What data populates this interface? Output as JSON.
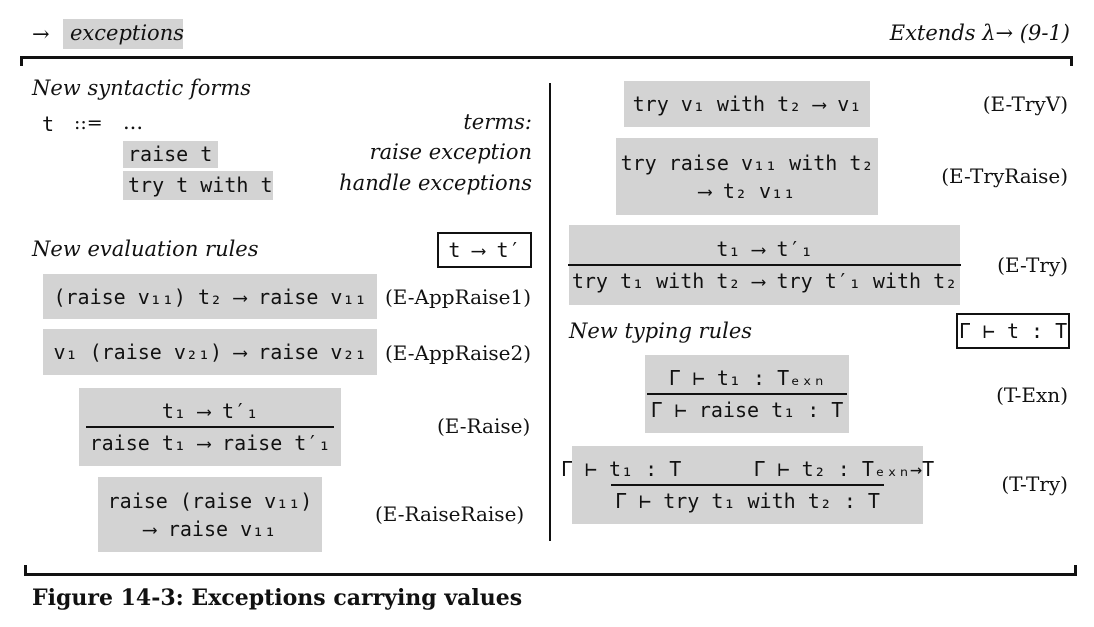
{
  "header": {
    "arrow": "→",
    "feature": "exceptions",
    "extends": "Extends λ→ (9-1)"
  },
  "left": {
    "syntax_heading": "New syntactic forms",
    "syntax_head_term": "t",
    "syntax_head_def": "::=",
    "syntax_head_dots": "...",
    "syntax_head_kind": "terms:",
    "syntax": [
      {
        "form": "raise t",
        "desc": "raise exception"
      },
      {
        "form": "try t with t",
        "desc": "handle exceptions"
      }
    ],
    "eval_heading": "New evaluation rules",
    "eval_judgment": "t ⟶ t′",
    "rules": [
      {
        "name": "(E-AppRaise1)",
        "line": "(raise v₁₁) t₂ ⟶ raise v₁₁"
      },
      {
        "name": "(E-AppRaise2)",
        "line": "v₁ (raise v₂₁) ⟶ raise v₂₁"
      },
      {
        "name": "(E-Raise)",
        "premise": "t₁ ⟶ t′₁",
        "conclusion": "raise t₁ ⟶ raise t′₁"
      },
      {
        "name": "(E-RaiseRaise)",
        "line1": "raise (raise v₁₁)",
        "line2": "⟶ raise v₁₁"
      }
    ]
  },
  "right": {
    "rules": [
      {
        "name": "(E-TryV)",
        "line": "try v₁ with t₂ ⟶ v₁"
      },
      {
        "name": "(E-TryRaise)",
        "line1": "try raise v₁₁ with t₂",
        "line2": "⟶ t₂ v₁₁"
      },
      {
        "name": "(E-Try)",
        "premise": "t₁ ⟶ t′₁",
        "conclusion": "try t₁ with t₂ ⟶ try t′₁ with t₂"
      }
    ],
    "typing_heading": "New typing rules",
    "typing_judgment": "Γ ⊢ t : T",
    "typing": [
      {
        "name": "(T-Exn)",
        "premise": "Γ ⊢ t₁ : Tₑₓₙ",
        "conclusion": "Γ ⊢ raise t₁ : T"
      },
      {
        "name": "(T-Try)",
        "premise": "Γ ⊢ t₁ : T      Γ ⊢ t₂ : Tₑₓₙ→T",
        "conclusion": "Γ ⊢ try t₁ with t₂ : T"
      }
    ]
  },
  "caption": "Figure 14-3: Exceptions carrying values"
}
